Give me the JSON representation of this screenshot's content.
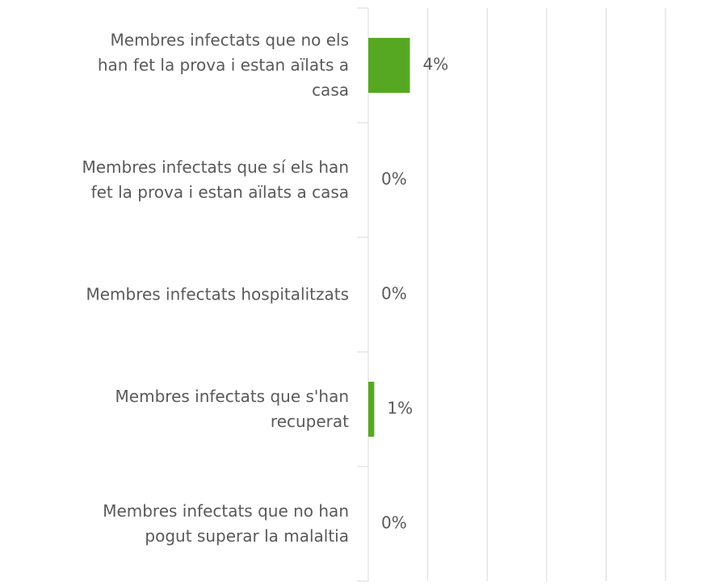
{
  "chart_data": {
    "type": "barh",
    "categories": [
      "Membres infectats que no els\nhan fet la prova i estan aïlats a\ncasa",
      "Membres infectats que sí els han\nfet la prova i estan aïlats a casa",
      "Membres infectats hospitalitzats",
      "Membres infectats que s'han\nrecuperat",
      "Membres infectats que no han\npogut superar la malaltia"
    ],
    "values": [
      3.5,
      0,
      0,
      0.5,
      0
    ],
    "value_labels": [
      "4%",
      "0%",
      "0%",
      "1%",
      "0%"
    ],
    "color": "#56a822",
    "xlim": [
      0,
      25
    ],
    "xticks": [
      0,
      5,
      10,
      15,
      20,
      25
    ],
    "grid": true
  }
}
